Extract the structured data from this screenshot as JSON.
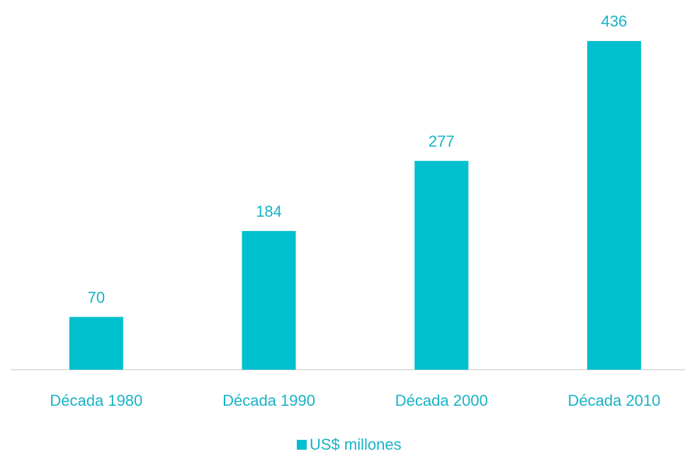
{
  "chart_data": {
    "type": "bar",
    "categories": [
      "Década 1980",
      "Década 1990",
      "Década 2000",
      "Década 2010"
    ],
    "series": [
      {
        "name": "US$ millones",
        "color": "#00bfcf",
        "values": [
          70,
          184,
          277,
          436
        ]
      }
    ],
    "ylim": [
      0,
      450
    ]
  }
}
